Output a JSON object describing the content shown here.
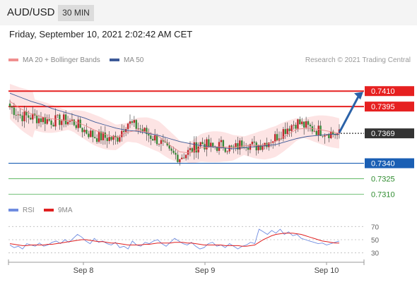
{
  "header": {
    "pair": "AUD/USD",
    "timeframe": "30 MIN"
  },
  "datetime": "Friday, September 10, 2021 2:02:42 AM CET",
  "legend": {
    "ma20_label": "MA 20 + Bollinger Bands",
    "ma50_label": "MA 50",
    "credit": "Research © 2021 Trading Central",
    "rsi_label": "RSI",
    "rsi_ma_label": "9MA"
  },
  "colors": {
    "bullish": "#c0272d",
    "bearish": "#3a8a3a",
    "resistance": "#e62020",
    "support_pivot": "#1a5fb4",
    "support": "#4caf50",
    "bollinger": "#fde4e4",
    "ma20": "#e88a8a",
    "ma50": "#3d5a98",
    "rsi": "#6f8ce0",
    "rsi_ma": "#e02020",
    "current_price": "#333333",
    "arrow": "#2b62a8"
  },
  "chart_data": [
    {
      "type": "candlestick",
      "title": "AUD/USD",
      "timeframe": "30 MIN",
      "x_ticks": [
        "Sep 8",
        "Sep 9",
        "Sep 10"
      ],
      "ylim": [
        0.73,
        0.743
      ],
      "current_price": "0.7369",
      "levels": [
        {
          "value": "0.7410",
          "kind": "resistance"
        },
        {
          "value": "0.7395",
          "kind": "resistance"
        },
        {
          "value": "0.7340",
          "kind": "pivot"
        },
        {
          "value": "0.7325",
          "kind": "support"
        },
        {
          "value": "0.7310",
          "kind": "support"
        }
      ],
      "close_path": [
        0.7395,
        0.7386,
        0.7385,
        0.7383,
        0.7381,
        0.7382,
        0.738,
        0.7372,
        0.7366,
        0.7365,
        0.7363,
        0.738,
        0.7375,
        0.7368,
        0.7362,
        0.735,
        0.7346,
        0.7352,
        0.736,
        0.7355,
        0.7358,
        0.7353,
        0.7361,
        0.7356,
        0.736,
        0.7365,
        0.7374,
        0.738,
        0.7375,
        0.7372,
        0.737,
        0.7368
      ],
      "candles_per_day": 48,
      "arrow_target": 0.741,
      "ma20": [
        0.74,
        0.7393,
        0.7388,
        0.7385,
        0.7383,
        0.7382,
        0.7381,
        0.7377,
        0.7372,
        0.7368,
        0.7365,
        0.737,
        0.7372,
        0.737,
        0.7366,
        0.7358,
        0.7351,
        0.735,
        0.7355,
        0.7356,
        0.7356,
        0.7355,
        0.7357,
        0.7357,
        0.7358,
        0.7361,
        0.7367,
        0.7373,
        0.7374,
        0.7373,
        0.7371,
        0.7369
      ],
      "ma50": [
        0.7408,
        0.7404,
        0.74,
        0.7397,
        0.7393,
        0.739,
        0.7387,
        0.7384,
        0.738,
        0.7377,
        0.7374,
        0.7372,
        0.7371,
        0.7369,
        0.7367,
        0.7364,
        0.7361,
        0.7359,
        0.7357,
        0.7356,
        0.7355,
        0.7354,
        0.7355,
        0.7356,
        0.7357,
        0.7358,
        0.7361,
        0.7364,
        0.7366,
        0.7367,
        0.7368,
        0.7368
      ]
    },
    {
      "type": "line",
      "title": "RSI",
      "ylim": [
        20,
        80
      ],
      "y_ticks": [
        "70",
        "50",
        "30"
      ],
      "rsi": [
        42,
        38,
        40,
        36,
        44,
        42,
        40,
        45,
        40,
        42,
        46,
        48,
        44,
        50,
        46,
        52,
        58,
        54,
        48,
        44,
        52,
        46,
        48,
        44,
        42,
        46,
        38,
        40,
        36,
        48,
        42,
        40,
        46,
        44,
        48,
        50,
        44,
        40,
        46,
        52,
        48,
        44,
        42,
        46,
        40,
        36,
        38,
        44,
        46,
        40,
        42,
        38,
        44,
        40,
        36,
        40,
        42,
        46,
        44,
        66,
        62,
        58,
        64,
        60,
        66,
        58,
        62,
        56,
        58,
        52,
        50,
        48,
        46,
        44,
        45,
        42,
        44,
        46,
        48
      ],
      "rsi_ma": [
        44,
        43,
        42,
        41,
        41,
        42,
        42,
        42,
        42,
        43,
        43,
        44,
        45,
        46,
        47,
        48,
        49,
        50,
        50,
        49,
        48,
        47,
        47,
        46,
        45,
        45,
        44,
        43,
        42,
        42,
        42,
        42,
        43,
        43,
        44,
        45,
        45,
        45,
        45,
        46,
        46,
        46,
        45,
        45,
        44,
        43,
        42,
        42,
        42,
        42,
        42,
        41,
        41,
        41,
        41,
        40,
        40,
        41,
        42,
        46,
        50,
        53,
        56,
        58,
        59,
        60,
        60,
        60,
        59,
        58,
        56,
        54,
        52,
        50,
        48,
        47,
        46,
        45,
        45
      ]
    }
  ]
}
